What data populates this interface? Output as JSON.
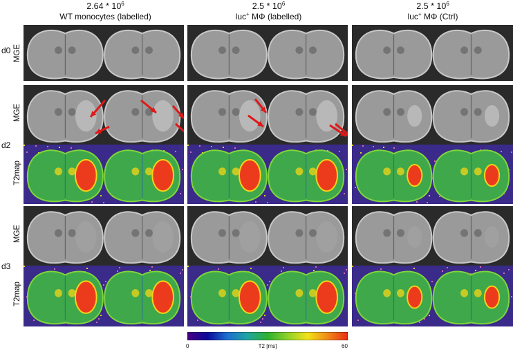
{
  "columns": [
    {
      "count": "2.64 * 10",
      "exp": "6",
      "pre": "WT monocytes (labelled)",
      "sup": "",
      "post": ""
    },
    {
      "count": "2.5 * 10",
      "exp": "6",
      "pre": "luc",
      "sup": "+",
      "post": " MΦ (labelled)"
    },
    {
      "count": "2.5 * 10",
      "exp": "6",
      "pre": "luc",
      "sup": "+",
      "post": " MΦ (Ctrl)"
    }
  ],
  "days": [
    "d0",
    "d2",
    "d3"
  ],
  "row_labels": {
    "mge": "MGE",
    "t2map": "T2map"
  },
  "colorbar": {
    "min": "0",
    "max": "60",
    "label": "T2 [ms]",
    "colors": [
      "#4b0082",
      "#0a0a9a",
      "#1e6fd0",
      "#1fa5a0",
      "#2fb030",
      "#8fd12a",
      "#f2e21a",
      "#f08a18",
      "#e82c14"
    ]
  },
  "lesion_colors": {
    "mge_bg": "#2a2a2a",
    "t2_bg": "#3a2a8a",
    "t2_tissue": "#3ea84a",
    "t2_lesion": "#ec3b1c"
  }
}
